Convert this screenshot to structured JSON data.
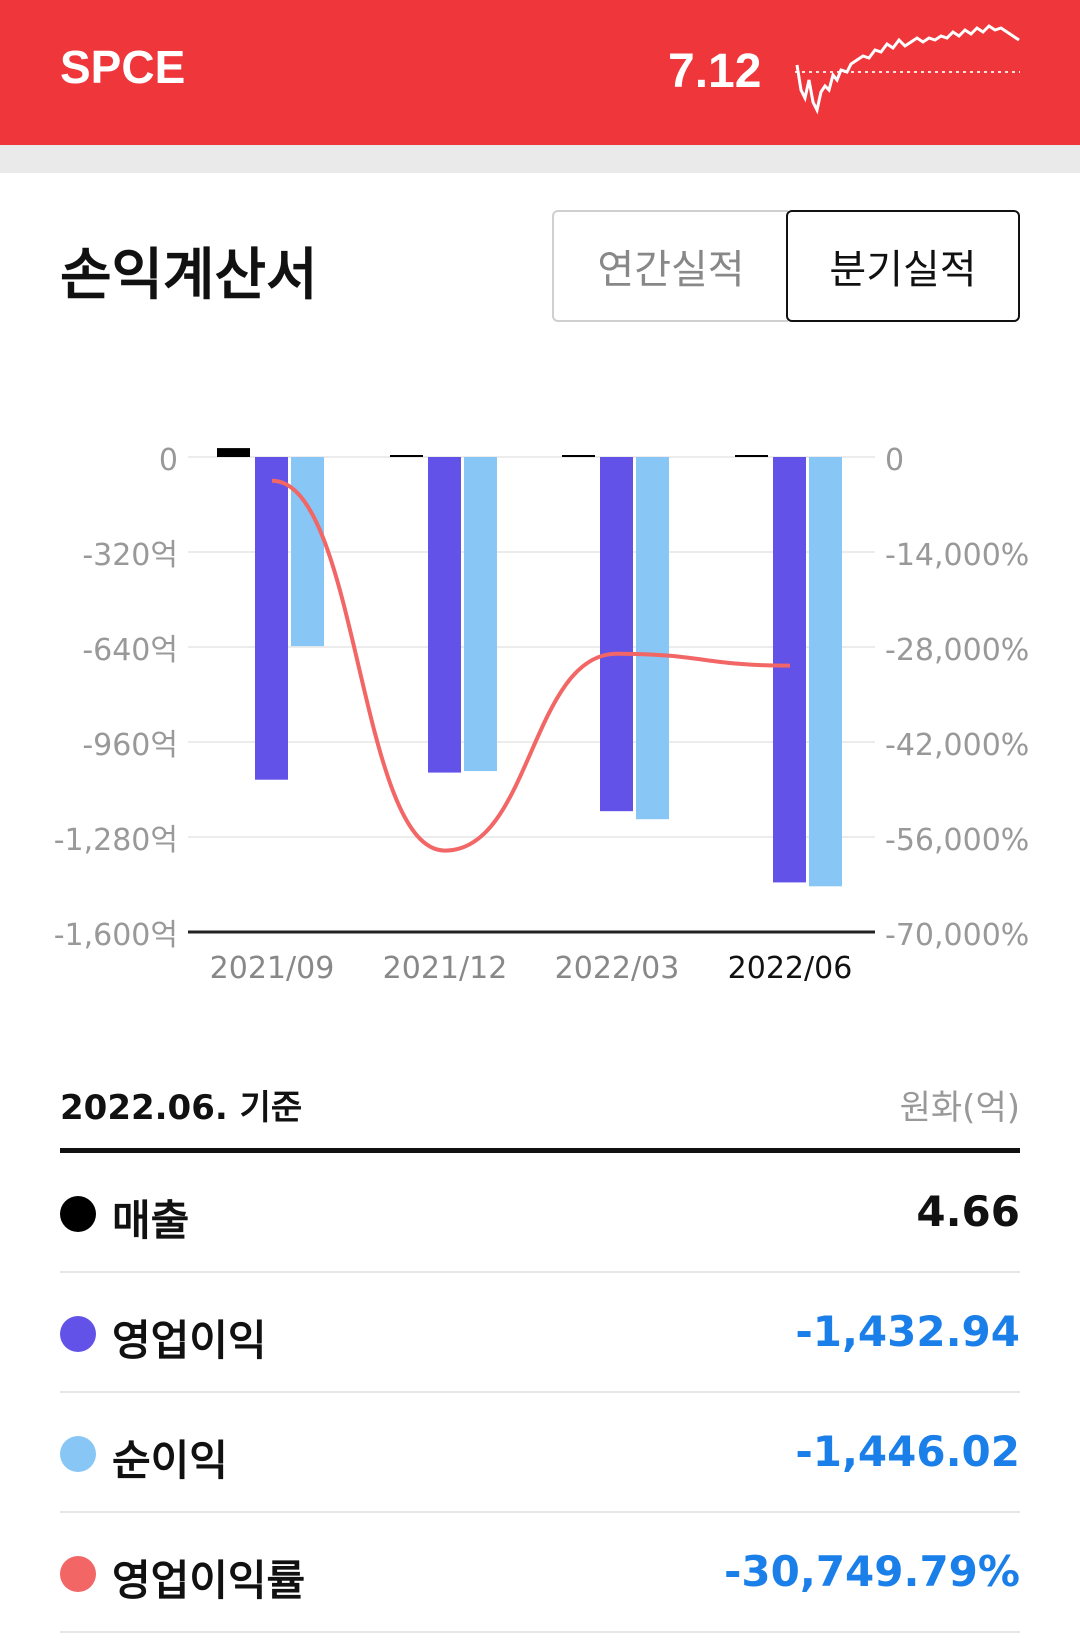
{
  "header": {
    "ticker": "SPCE",
    "price": "7.12"
  },
  "section": {
    "title": "손익계산서",
    "tabs": {
      "annual": "연간실적",
      "quarterly": "분기실적"
    },
    "selected_tab": "quarterly"
  },
  "chart_data": {
    "type": "bar",
    "categories": [
      "2021/09",
      "2021/12",
      "2022/03",
      "2022/06"
    ],
    "selected_category": "2022/06",
    "left_axis": {
      "ticks": [
        "0",
        "-320억",
        "-640억",
        "-960억",
        "-1,280억",
        "-1,600억"
      ],
      "range": [
        -1600,
        0
      ]
    },
    "right_axis": {
      "ticks": [
        "0",
        "-14,000%",
        "-28,000%",
        "-42,000%",
        "-56,000%",
        "-70,000%"
      ],
      "range": [
        -70000,
        0
      ]
    },
    "series": [
      {
        "name": "매출",
        "type": "bar",
        "axis": "left",
        "color": "#000000",
        "values": [
          30,
          2,
          4.66,
          4.66
        ]
      },
      {
        "name": "영업이익",
        "type": "bar",
        "axis": "left",
        "color": "#6252e8",
        "values": [
          -1087,
          -1063,
          -1193,
          -1432.94
        ]
      },
      {
        "name": "순이익",
        "type": "bar",
        "axis": "left",
        "color": "#87c6f5",
        "values": [
          -637,
          -1058,
          -1220,
          -1446.02
        ]
      },
      {
        "name": "영업이익률",
        "type": "line",
        "axis": "right",
        "color": "#f26666",
        "values": [
          -3500,
          -58000,
          -29000,
          -30749.79
        ]
      }
    ]
  },
  "summary": {
    "basis": "2022.06. 기준",
    "unit": "원화(억)",
    "rows": [
      {
        "label": "매출",
        "value": "4.66",
        "dot_color": "#000000",
        "value_color": "#111111"
      },
      {
        "label": "영업이익",
        "value": "-1,432.94",
        "dot_color": "#6252e8",
        "value_color": "#1a7fe8"
      },
      {
        "label": "순이익",
        "value": "-1,446.02",
        "dot_color": "#87c6f5",
        "value_color": "#1a7fe8"
      },
      {
        "label": "영업이익률",
        "value": "-30,749.79%",
        "dot_color": "#f26666",
        "value_color": "#1a7fe8"
      }
    ]
  }
}
